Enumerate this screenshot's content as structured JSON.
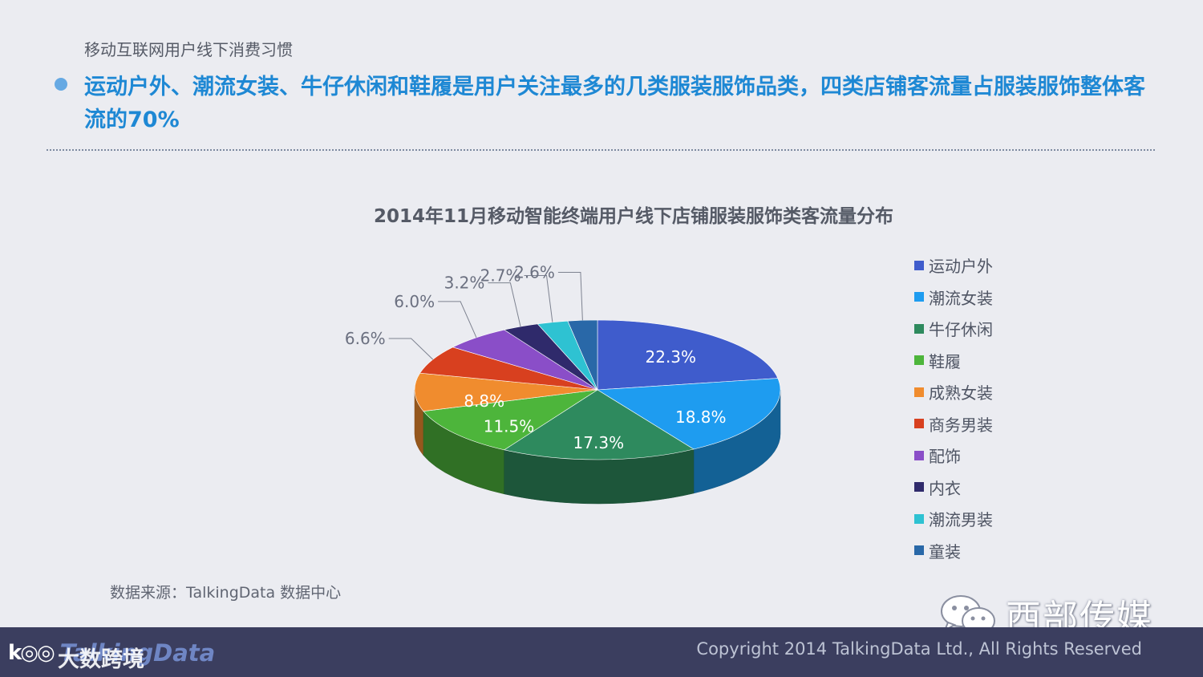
{
  "header": {
    "section_title": "移动互联网用户线下消费习惯",
    "headline": "运动户外、潮流女装、牛仔休闲和鞋履是用户关注最多的几类服装服饰品类，四类店铺客流量占服装服饰整体客流的70%"
  },
  "chart_data": {
    "type": "pie",
    "title": "2014年11月移动智能终端用户线下店铺服装服饰类客流量分布",
    "unit": "%",
    "slices": [
      {
        "name": "运动户外",
        "value": 22.3,
        "label": "22.3%",
        "color": "#3f5ccc"
      },
      {
        "name": "潮流女装",
        "value": 18.8,
        "label": "18.8%",
        "color": "#1e9cf0"
      },
      {
        "name": "牛仔休闲",
        "value": 17.3,
        "label": "17.3%",
        "color": "#2e8a5e"
      },
      {
        "name": "鞋履",
        "value": 11.5,
        "label": "11.5%",
        "color": "#4db53b"
      },
      {
        "name": "成熟女装",
        "value": 8.8,
        "label": "8.8%",
        "color": "#f08c2e"
      },
      {
        "name": "商务男装",
        "value": 6.6,
        "label": "6.6%",
        "color": "#d8401f"
      },
      {
        "name": "配饰",
        "value": 6.0,
        "label": "6.0%",
        "color": "#8a4ec8"
      },
      {
        "name": "内衣",
        "value": 3.2,
        "label": "3.2%",
        "color": "#2f2a6b"
      },
      {
        "name": "潮流男装",
        "value": 2.7,
        "label": "2.7%",
        "color": "#2ec2d2"
      },
      {
        "name": "童装",
        "value": 2.6,
        "label": "2.6%",
        "color": "#2968a8"
      }
    ],
    "legend_position": "right"
  },
  "source": "数据来源：TalkingData 数据中心",
  "watermark": "西部传媒",
  "footer": {
    "logo_text": "TalkingData",
    "logo_cn": "大数跨境",
    "copyright": "Copyright 2014 TalkingData Ltd., All Rights Reserved"
  }
}
